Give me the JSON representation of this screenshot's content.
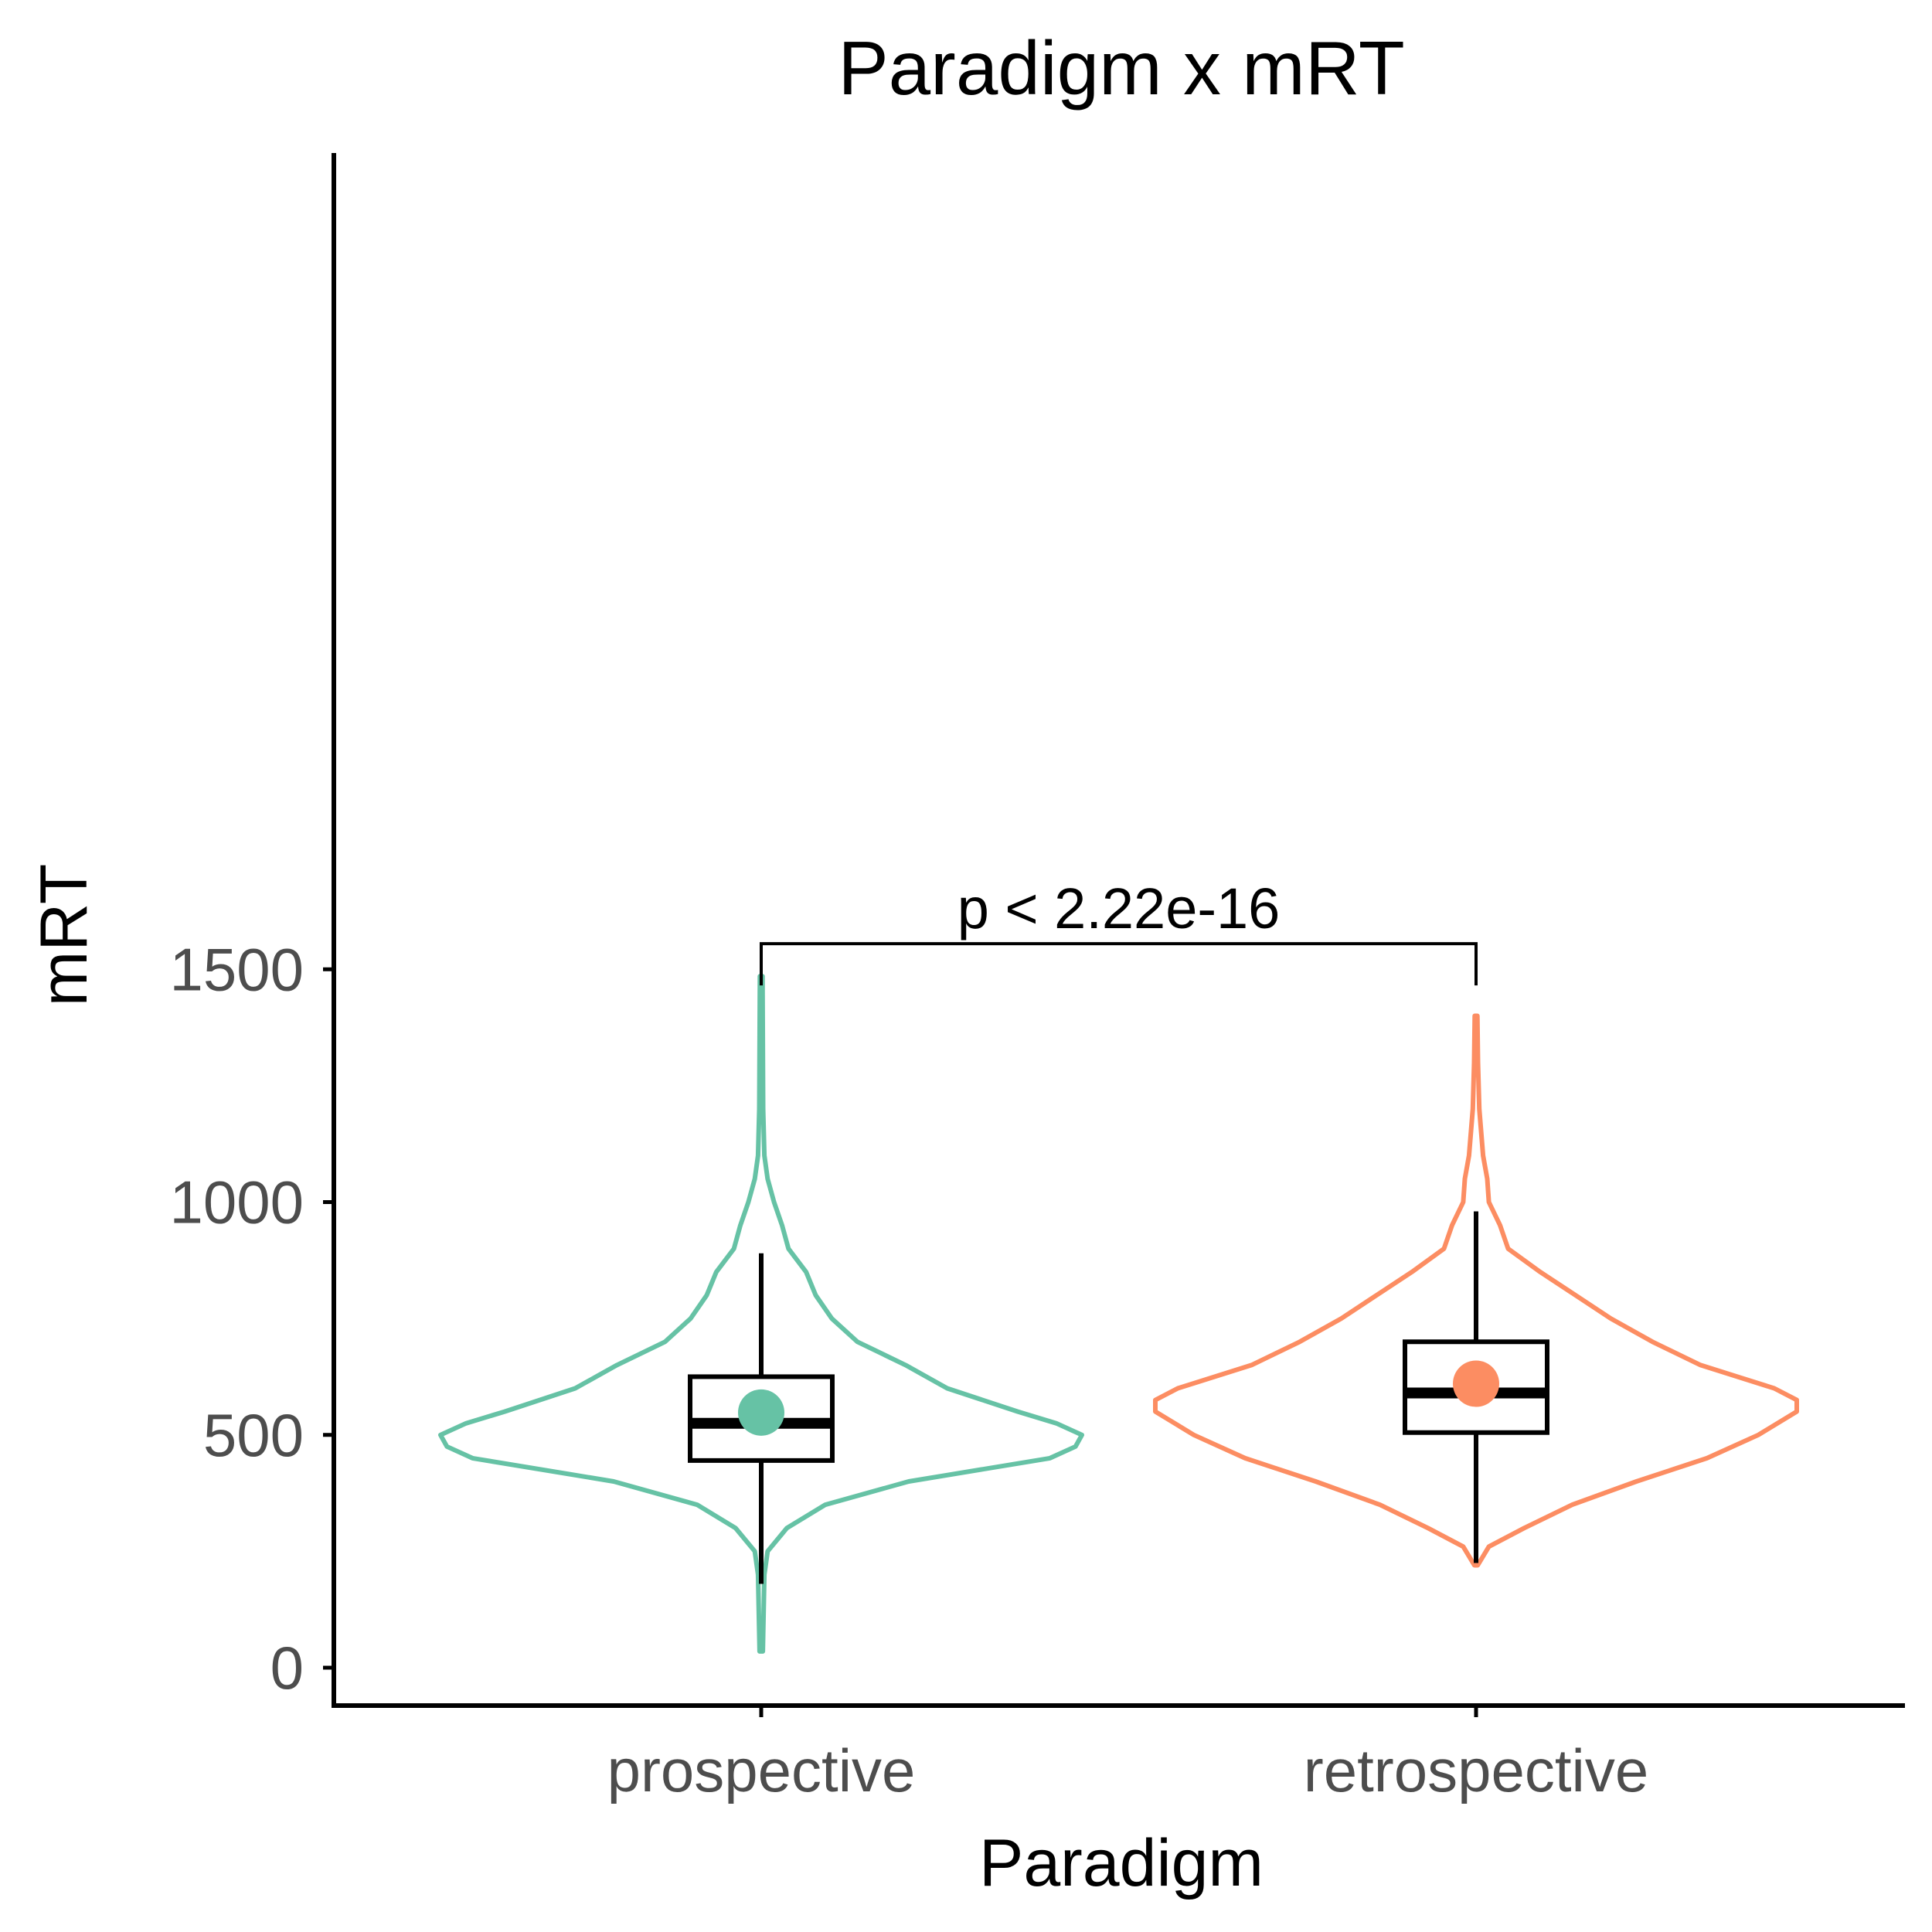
{
  "chart_data": {
    "type": "violin",
    "title": "Paradigm x mRT",
    "xlabel": "Paradigm",
    "ylabel": "mRT",
    "categories": [
      "prospective",
      "retrospective"
    ],
    "ylim": [
      -40,
      1640
    ],
    "yticks": [
      0,
      500,
      1000,
      1500
    ],
    "grid": false,
    "series": [
      {
        "category": "prospective",
        "color": "#66c2a5",
        "min": 35,
        "max": 1485,
        "whisker_low": 180,
        "q1": 445,
        "median": 525,
        "q3": 625,
        "whisker_high": 890,
        "mean": 548,
        "density": [
          [
            35,
            0.005
          ],
          [
            200,
            0.01
          ],
          [
            250,
            0.02
          ],
          [
            300,
            0.08
          ],
          [
            350,
            0.2
          ],
          [
            400,
            0.46
          ],
          [
            450,
            0.9
          ],
          [
            475,
            0.98
          ],
          [
            500,
            1.0
          ],
          [
            525,
            0.92
          ],
          [
            550,
            0.8
          ],
          [
            600,
            0.58
          ],
          [
            650,
            0.45
          ],
          [
            700,
            0.3
          ],
          [
            750,
            0.22
          ],
          [
            800,
            0.17
          ],
          [
            850,
            0.14
          ],
          [
            900,
            0.085
          ],
          [
            950,
            0.065
          ],
          [
            1000,
            0.04
          ],
          [
            1050,
            0.02
          ],
          [
            1100,
            0.01
          ],
          [
            1200,
            0.006
          ],
          [
            1485,
            0.004
          ]
        ]
      },
      {
        "category": "retrospective",
        "color": "#fc8d62",
        "min": 220,
        "max": 1400,
        "whisker_low": 225,
        "q1": 505,
        "median": 590,
        "q3": 700,
        "whisker_high": 980,
        "mean": 610,
        "density": [
          [
            220,
            0.005
          ],
          [
            260,
            0.04
          ],
          [
            300,
            0.15
          ],
          [
            350,
            0.3
          ],
          [
            400,
            0.5
          ],
          [
            450,
            0.72
          ],
          [
            500,
            0.88
          ],
          [
            550,
            1.0
          ],
          [
            575,
            1.0
          ],
          [
            600,
            0.93
          ],
          [
            650,
            0.7
          ],
          [
            700,
            0.55
          ],
          [
            750,
            0.42
          ],
          [
            800,
            0.31
          ],
          [
            850,
            0.2
          ],
          [
            900,
            0.1
          ],
          [
            950,
            0.075
          ],
          [
            1000,
            0.04
          ],
          [
            1050,
            0.035
          ],
          [
            1100,
            0.022
          ],
          [
            1200,
            0.01
          ],
          [
            1300,
            0.006
          ],
          [
            1400,
            0.004
          ]
        ]
      }
    ],
    "comparison": {
      "groups": [
        "prospective",
        "retrospective"
      ],
      "label": "p < 2.22e-16",
      "y": 1555
    }
  }
}
